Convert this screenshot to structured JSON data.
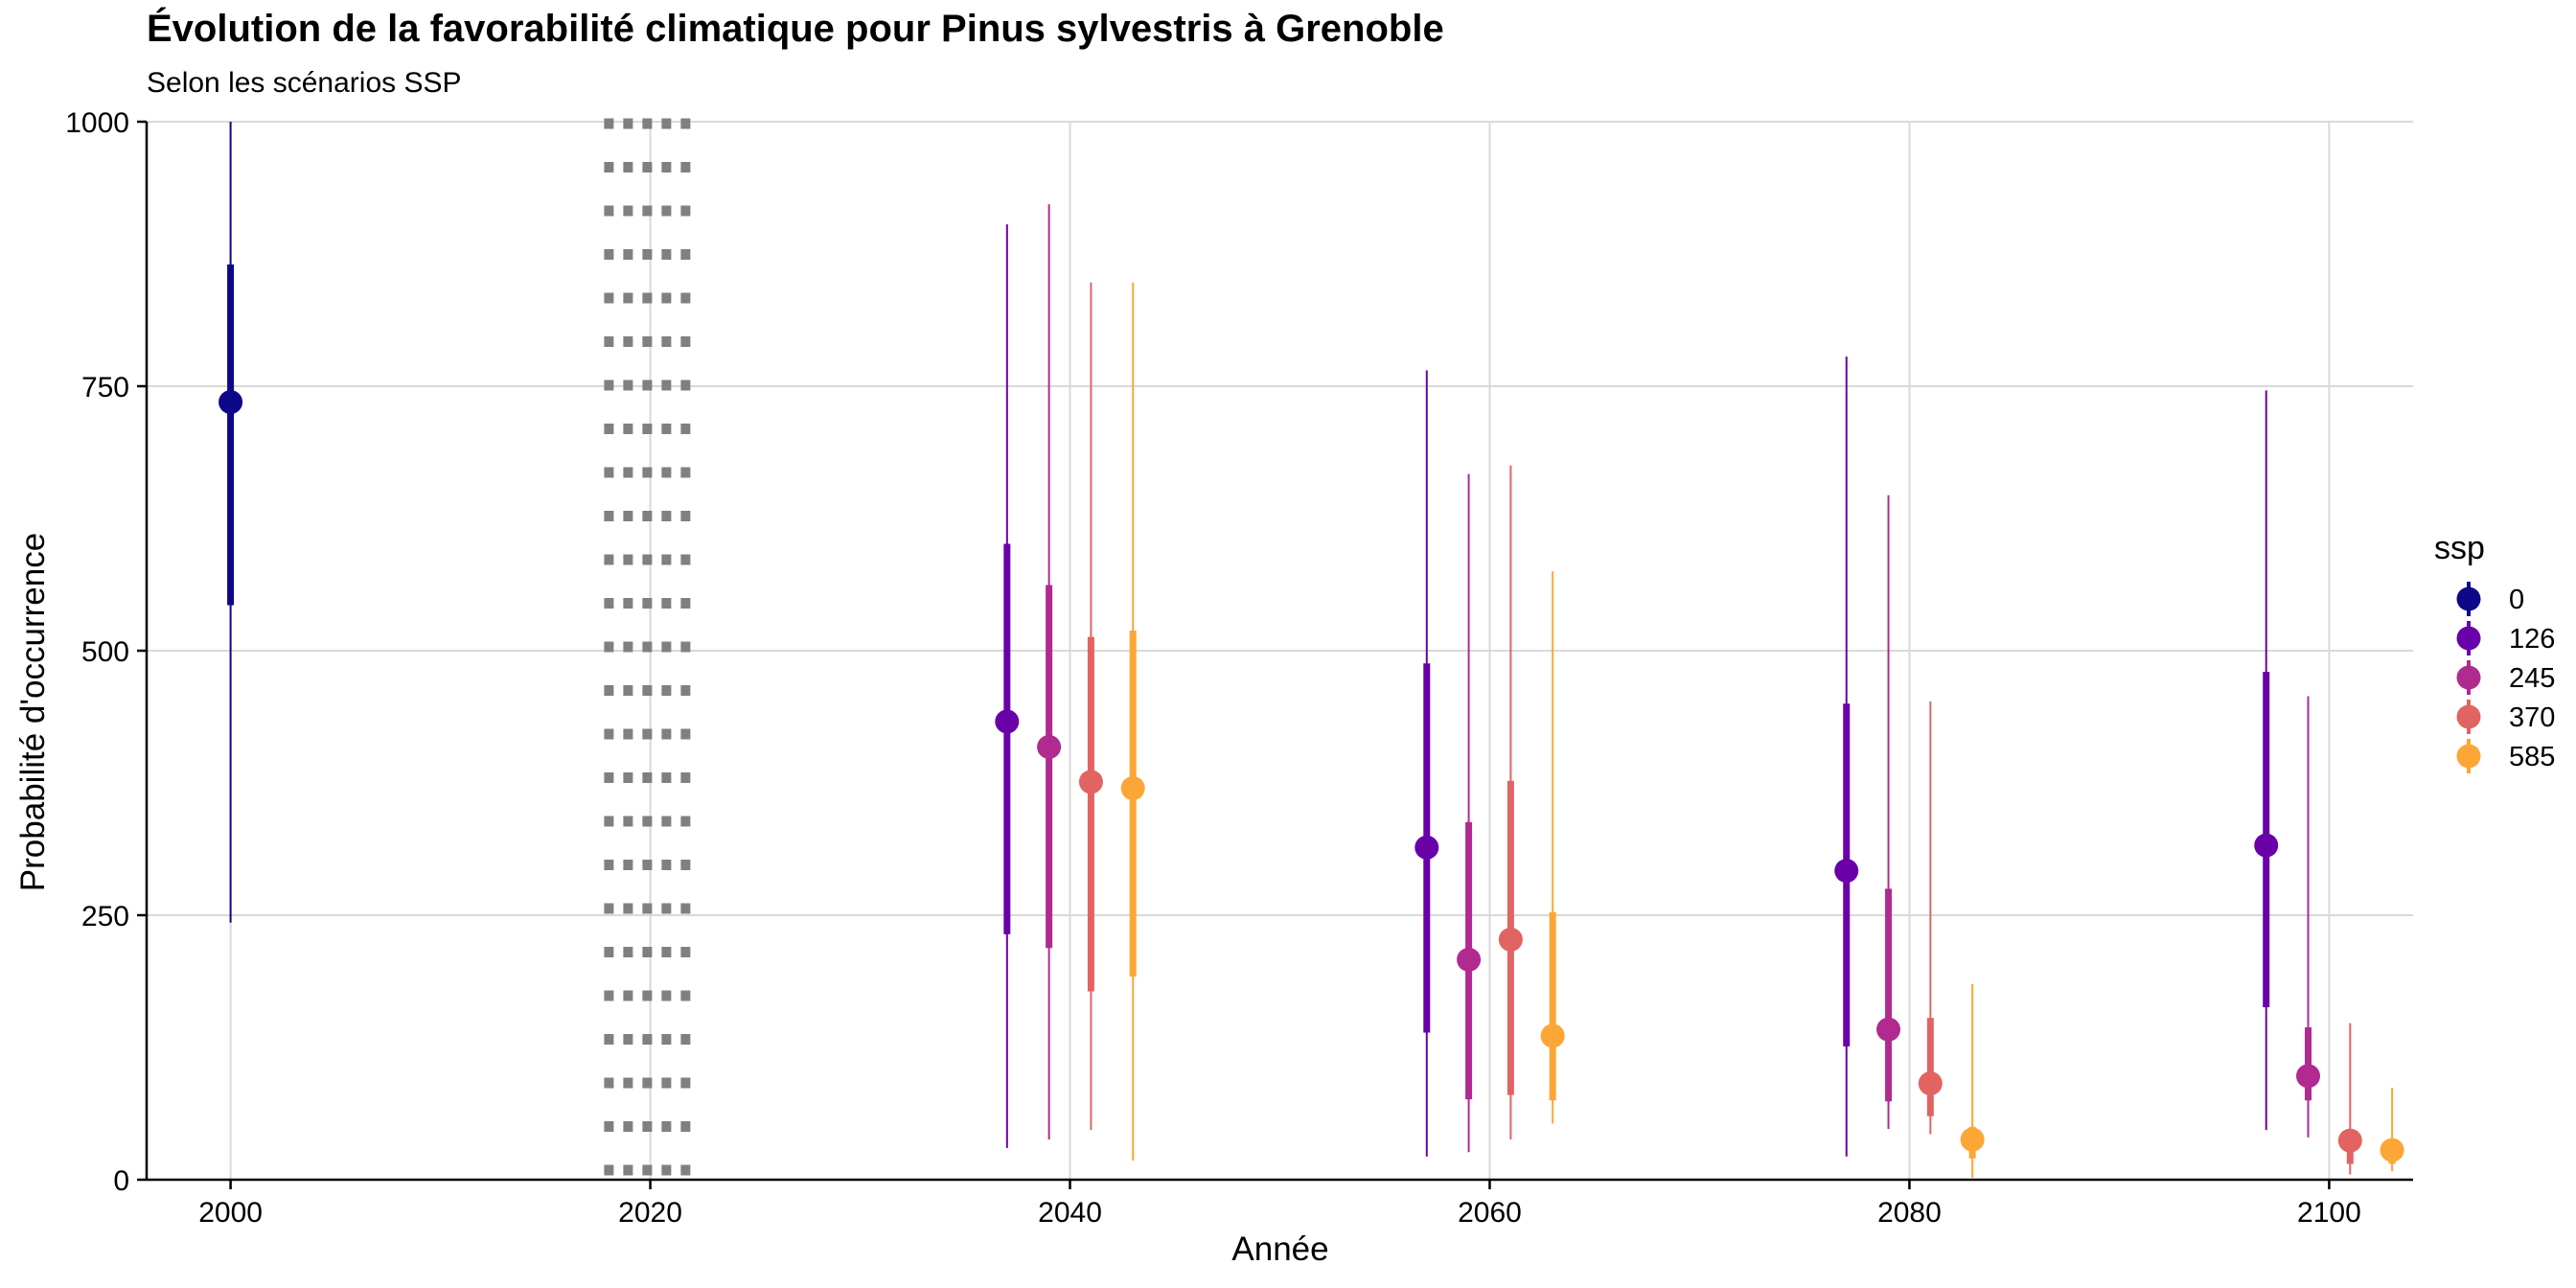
{
  "chart_data": {
    "type": "pointrange",
    "title": "Évolution de la favorabilité climatique pour Pinus sylvestris à Grenoble",
    "subtitle": "Selon les scénarios SSP",
    "xlabel": "Année",
    "ylabel": "Probabilité d'occurrence",
    "xlim": [
      1996,
      2104
    ],
    "ylim": [
      0,
      1000
    ],
    "xticks": [
      2000,
      2020,
      2040,
      2060,
      2080,
      2100
    ],
    "yticks": [
      0,
      250,
      500,
      750,
      1000
    ],
    "grid": true,
    "reference_band": {
      "x_from": 2017.8,
      "x_to": 2022.2,
      "style": "dotted grey"
    },
    "legend": {
      "title": "ssp",
      "position": "right"
    },
    "series": [
      {
        "name": "0",
        "color": "#0d0887",
        "points": [
          {
            "x": 2000,
            "median": 735,
            "q25": 543,
            "q75": 865,
            "min": 243,
            "max": 1000
          }
        ]
      },
      {
        "name": "126",
        "color": "#6a00a8",
        "points": [
          {
            "x": 2037,
            "median": 433,
            "q25": 232,
            "q75": 601,
            "min": 30,
            "max": 903
          },
          {
            "x": 2057,
            "median": 314,
            "q25": 139,
            "q75": 488,
            "min": 22,
            "max": 765
          },
          {
            "x": 2077,
            "median": 292,
            "q25": 126,
            "q75": 450,
            "min": 22,
            "max": 778
          },
          {
            "x": 2097,
            "median": 316,
            "q25": 163,
            "q75": 480,
            "min": 47,
            "max": 746
          }
        ]
      },
      {
        "name": "245",
        "color": "#b12a90",
        "points": [
          {
            "x": 2039,
            "median": 409,
            "q25": 219,
            "q75": 562,
            "min": 38,
            "max": 922
          },
          {
            "x": 2059,
            "median": 208,
            "q25": 76,
            "q75": 338,
            "min": 26,
            "max": 667
          },
          {
            "x": 2079,
            "median": 142,
            "q25": 74,
            "q75": 275,
            "min": 48,
            "max": 647
          },
          {
            "x": 2099,
            "median": 98,
            "q25": 75,
            "q75": 144,
            "min": 40,
            "max": 457
          }
        ]
      },
      {
        "name": "370",
        "color": "#e16462",
        "points": [
          {
            "x": 2041,
            "median": 376,
            "q25": 178,
            "q75": 513,
            "min": 47,
            "max": 848
          },
          {
            "x": 2061,
            "median": 227,
            "q25": 80,
            "q75": 377,
            "min": 38,
            "max": 675
          },
          {
            "x": 2081,
            "median": 91,
            "q25": 60,
            "q75": 153,
            "min": 43,
            "max": 452
          },
          {
            "x": 2101,
            "median": 37,
            "q25": 15,
            "q75": 45,
            "min": 5,
            "max": 148
          }
        ]
      },
      {
        "name": "585",
        "color": "#fca636",
        "points": [
          {
            "x": 2043,
            "median": 370,
            "q25": 192,
            "q75": 519,
            "min": 18,
            "max": 848
          },
          {
            "x": 2063,
            "median": 136,
            "q25": 75,
            "q75": 253,
            "min": 53,
            "max": 575
          },
          {
            "x": 2083,
            "median": 38,
            "q25": 20,
            "q75": 50,
            "min": 2,
            "max": 185
          },
          {
            "x": 2103,
            "median": 28,
            "q25": 15,
            "q75": 38,
            "min": 8,
            "max": 87
          }
        ]
      }
    ]
  }
}
